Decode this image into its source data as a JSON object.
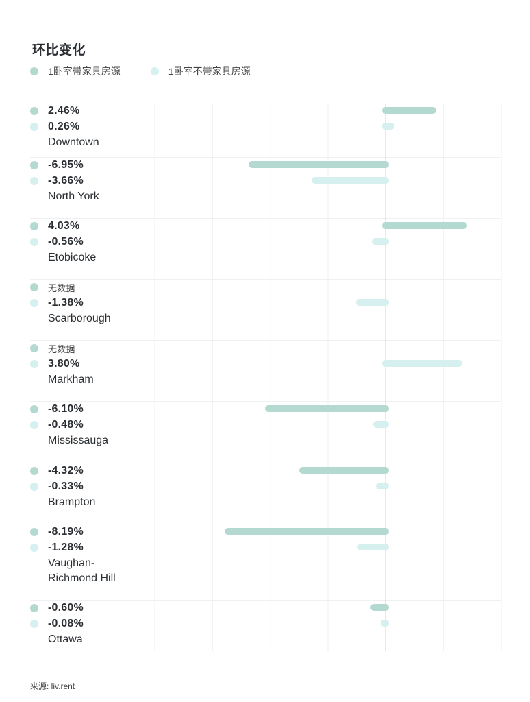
{
  "title": "环比变化",
  "legend": {
    "series1": "1卧室带家具房源",
    "series2": "1卧室不带家具房源"
  },
  "no_data_label": "无数据",
  "source": "来源: liv.rent",
  "colors": {
    "series1": "#b4d9d1",
    "series2": "#d5f0ee",
    "axis": "#777777",
    "grid": "#eef0f1"
  },
  "chart_data": {
    "type": "bar",
    "orientation": "horizontal",
    "title": "环比变化",
    "xlim": [
      -12,
      6
    ],
    "categories": [
      "Downtown",
      "North York",
      "Etobicoke",
      "Scarborough",
      "Markham",
      "Mississauga",
      "Brampton",
      "Vaughan-\nRichmond Hill",
      "Ottawa"
    ],
    "series": [
      {
        "name": "1卧室带家具房源",
        "values": [
          2.46,
          -6.95,
          4.03,
          null,
          null,
          -6.1,
          -4.32,
          -8.19,
          -0.6
        ],
        "labels": [
          "2.46%",
          "-6.95%",
          "4.03%",
          "无数据",
          "无数据",
          "-6.10%",
          "-4.32%",
          "-8.19%",
          "-0.60%"
        ]
      },
      {
        "name": "1卧室不带家具房源",
        "values": [
          0.26,
          -3.66,
          -0.56,
          -1.38,
          3.8,
          -0.48,
          -0.33,
          -1.28,
          -0.08
        ],
        "labels": [
          "0.26%",
          "-3.66%",
          "-0.56%",
          "-1.38%",
          "3.80%",
          "-0.48%",
          "-0.33%",
          "-1.28%",
          "-0.08%"
        ]
      }
    ]
  }
}
